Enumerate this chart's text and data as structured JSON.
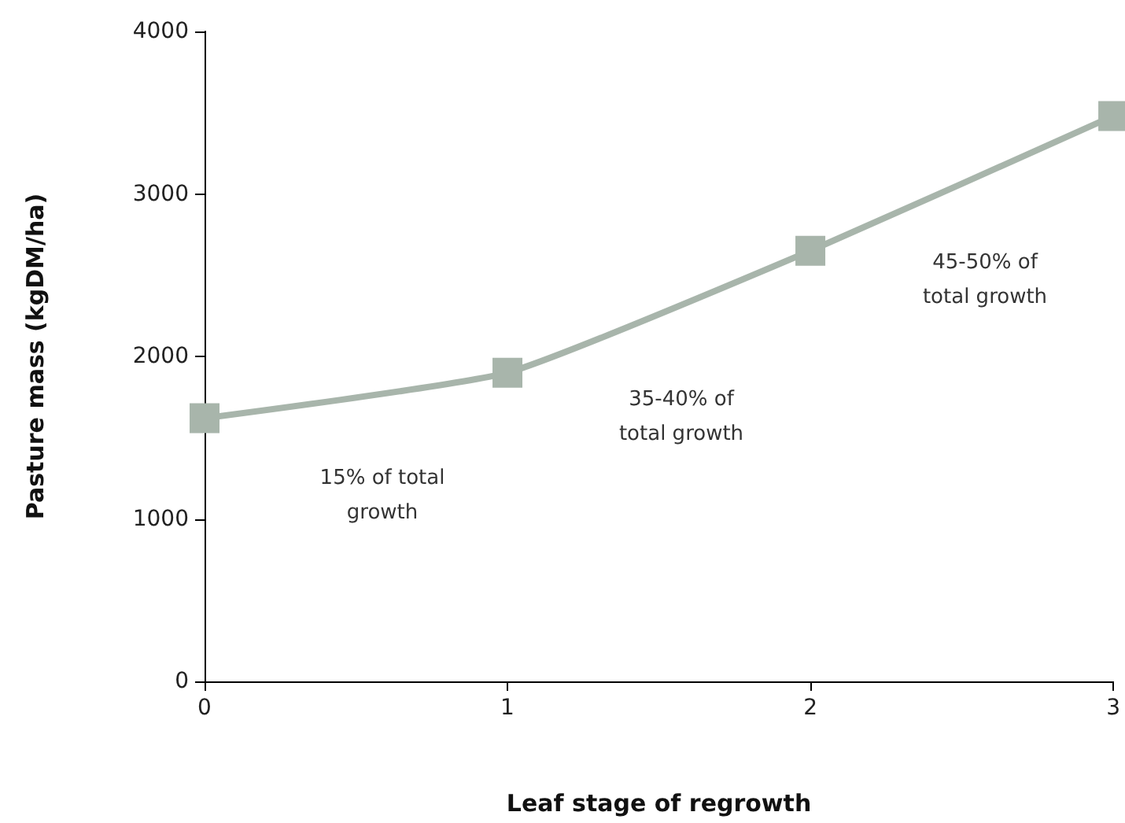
{
  "chart_data": {
    "type": "line",
    "xlabel": "Leaf stage of regrowth",
    "ylabel": "Pasture mass (kgDM/ha)",
    "x": [
      0,
      1,
      2,
      3
    ],
    "series": [
      {
        "color": "#a8b5ab",
        "values": [
          1620,
          1900,
          2650,
          3480
        ]
      }
    ],
    "xlim": [
      0,
      3
    ],
    "xticks": [
      0,
      1,
      2,
      3
    ],
    "ylim": [
      0,
      4000
    ],
    "yticks": [
      0,
      1000,
      2000,
      3000,
      4000
    ],
    "marker": "square",
    "line_style": "solid",
    "grid": false,
    "annotations": [
      "15% of total\ngrowth",
      "35-40% of\ntotal growth",
      "45-50% of\ntotal growth"
    ]
  }
}
